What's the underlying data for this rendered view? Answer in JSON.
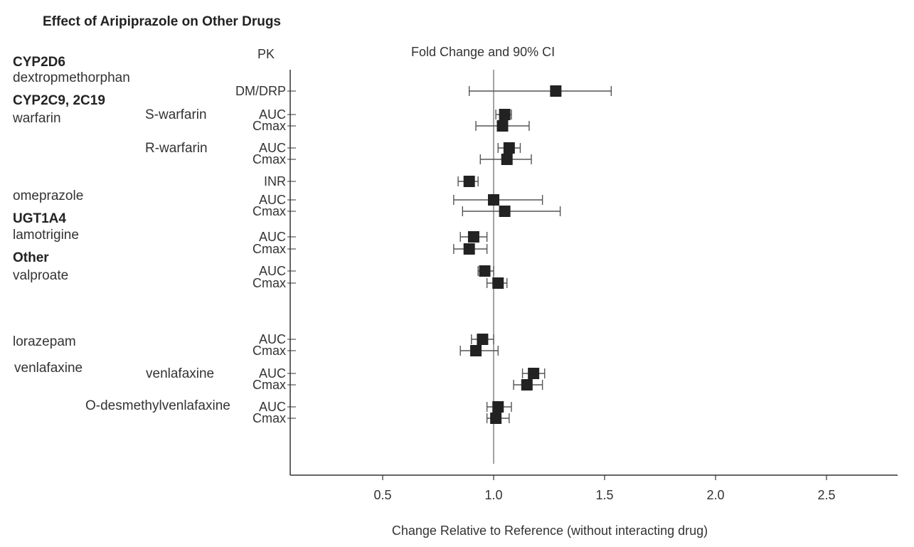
{
  "chart_data": {
    "type": "scatter",
    "title": "Effect of Aripiprazole on Other Drugs",
    "col_header_left": "PK",
    "col_header_right": "Fold Change and 90% CI",
    "xlabel": "Change Relative to Reference (without interacting drug)",
    "xlim": [
      0.1,
      3.0
    ],
    "xticks": [
      "0.5",
      "1.0",
      "1.5",
      "2.0",
      "2.5",
      "3.0"
    ],
    "reference_line": 1.0,
    "left_labels": [
      {
        "text": "CYP2D6",
        "bold": true
      },
      {
        "text": "dextropmethorphan",
        "bold": false
      },
      {
        "text": "CYP2C9, 2C19",
        "bold": true
      },
      {
        "text": "warfarin",
        "bold": false
      },
      {
        "text": "omeprazole",
        "bold": false
      },
      {
        "text": "UGT1A4",
        "bold": true
      },
      {
        "text": "lamotrigine",
        "bold": false
      },
      {
        "text": "Other",
        "bold": true
      },
      {
        "text": "valproate",
        "bold": false
      },
      {
        "text": "lorazepam",
        "bold": false
      },
      {
        "text": "venlafaxine",
        "bold": false
      }
    ],
    "sub_labels": [
      "S-warfarin",
      "R-warfarin",
      "venlafaxine",
      "O-desmethylvenlafaxine"
    ],
    "rows": [
      {
        "pk": "DM/DRP",
        "est": 1.28,
        "lo": 0.89,
        "hi": 1.53
      },
      {
        "pk": "AUC",
        "est": 1.05,
        "lo": 1.01,
        "hi": 1.08
      },
      {
        "pk": "Cmax",
        "est": 1.04,
        "lo": 0.92,
        "hi": 1.16
      },
      {
        "pk": "AUC",
        "est": 1.07,
        "lo": 1.02,
        "hi": 1.12
      },
      {
        "pk": "Cmax",
        "est": 1.06,
        "lo": 0.94,
        "hi": 1.17
      },
      {
        "pk": "INR",
        "est": 0.89,
        "lo": 0.84,
        "hi": 0.93
      },
      {
        "pk": "AUC",
        "est": 1.0,
        "lo": 0.82,
        "hi": 1.22
      },
      {
        "pk": "Cmax",
        "est": 1.05,
        "lo": 0.86,
        "hi": 1.3
      },
      {
        "pk": "AUC",
        "est": 0.91,
        "lo": 0.85,
        "hi": 0.97
      },
      {
        "pk": "Cmax",
        "est": 0.89,
        "lo": 0.82,
        "hi": 0.97
      },
      {
        "pk": "AUC",
        "est": 0.96,
        "lo": 0.93,
        "hi": 1.0
      },
      {
        "pk": "Cmax",
        "est": 1.02,
        "lo": 0.97,
        "hi": 1.06
      },
      {
        "pk": "AUC",
        "est": 0.95,
        "lo": 0.9,
        "hi": 1.0
      },
      {
        "pk": "Cmax",
        "est": 0.92,
        "lo": 0.85,
        "hi": 1.02
      },
      {
        "pk": "AUC",
        "est": 1.18,
        "lo": 1.13,
        "hi": 1.23
      },
      {
        "pk": "Cmax",
        "est": 1.15,
        "lo": 1.09,
        "hi": 1.22
      },
      {
        "pk": "AUC",
        "est": 1.02,
        "lo": 0.97,
        "hi": 1.08
      },
      {
        "pk": "Cmax",
        "est": 1.01,
        "lo": 0.97,
        "hi": 1.07
      }
    ],
    "grid": false,
    "legend": "none",
    "marker_color": "#222222",
    "line_color": "#555555"
  }
}
